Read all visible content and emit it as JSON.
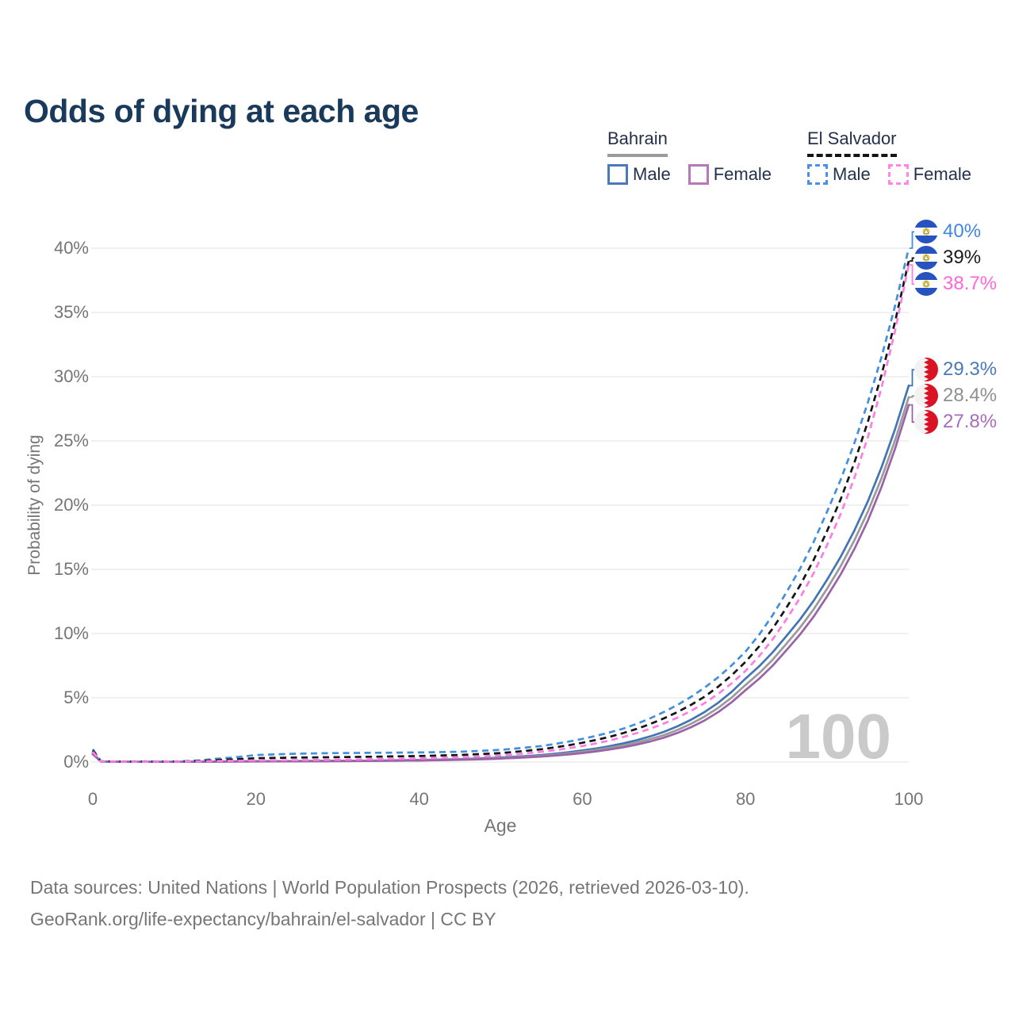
{
  "title": "Odds of dying at each age",
  "watermark": "100",
  "legend": {
    "groups": [
      {
        "name": "Bahrain",
        "line_style": "solid",
        "underline_color": "#9a9a9a",
        "items": [
          {
            "label": "Male",
            "color": "#4a7ab8"
          },
          {
            "label": "Female",
            "color": "#b878b8"
          }
        ]
      },
      {
        "name": "El Salvador",
        "line_style": "dashed",
        "underline_color": "#141414",
        "items": [
          {
            "label": "Male",
            "color": "#4a90e8"
          },
          {
            "label": "Female",
            "color": "#ff85e8"
          }
        ]
      }
    ]
  },
  "footer": {
    "line1": "Data sources: United Nations | World Population Prospects (2026, retrieved 2026-03-10).",
    "line2": "GeoRank.org/life-expectancy/bahrain/el-salvador | CC BY"
  },
  "chart_data": {
    "type": "line",
    "title": "Odds of dying at each age",
    "xlabel": "Age",
    "ylabel": "Probability of dying",
    "xlim": [
      0,
      100
    ],
    "ylim": [
      0,
      40
    ],
    "grid": true,
    "legend_position": "top-right",
    "x_ticks": [
      0,
      20,
      40,
      60,
      80,
      100
    ],
    "y_tick_values": [
      0,
      5,
      10,
      15,
      20,
      25,
      30,
      35,
      40
    ],
    "y_ticks": [
      "0%",
      "5%",
      "10%",
      "15%",
      "20%",
      "25%",
      "30%",
      "35%",
      "40%"
    ],
    "ages": [
      0,
      1,
      5,
      10,
      15,
      20,
      25,
      30,
      35,
      40,
      45,
      50,
      55,
      60,
      65,
      70,
      75,
      80,
      85,
      90,
      95,
      100
    ],
    "series": [
      {
        "name": "Bahrain Male",
        "country": "Bahrain",
        "sex": "Male",
        "color": "#4374b4",
        "dash": false,
        "flag": "bahrain",
        "end_label": "29.3%",
        "end_label_color": "#4a79b8",
        "values": [
          0.7,
          0.04,
          0.02,
          0.02,
          0.04,
          0.07,
          0.08,
          0.1,
          0.12,
          0.16,
          0.23,
          0.35,
          0.55,
          0.9,
          1.45,
          2.35,
          3.9,
          6.5,
          9.8,
          14.2,
          20.3,
          29.3
        ]
      },
      {
        "name": "Bahrain Both sexes",
        "country": "Bahrain",
        "sex": "Both",
        "color": "#9a9a9a",
        "dash": false,
        "flag": "bahrain",
        "end_label": "28.4%",
        "end_label_color": "#8f8f8f",
        "values": [
          0.65,
          0.038,
          0.018,
          0.018,
          0.035,
          0.06,
          0.07,
          0.09,
          0.11,
          0.14,
          0.2,
          0.31,
          0.49,
          0.8,
          1.3,
          2.1,
          3.55,
          6.0,
          9.2,
          13.5,
          19.5,
          28.4
        ]
      },
      {
        "name": "Bahrain Female",
        "country": "Bahrain",
        "sex": "Female",
        "color": "#9b62a8",
        "dash": false,
        "flag": "bahrain",
        "end_label": "27.8%",
        "end_label_color": "#a76cbe",
        "values": [
          0.6,
          0.035,
          0.016,
          0.016,
          0.03,
          0.045,
          0.055,
          0.07,
          0.09,
          0.12,
          0.17,
          0.27,
          0.43,
          0.7,
          1.15,
          1.9,
          3.25,
          5.6,
          8.7,
          12.9,
          18.8,
          27.8
        ]
      },
      {
        "name": "El Salvador Male",
        "country": "El Salvador",
        "sex": "Male",
        "color": "#418fde",
        "dash": true,
        "flag": "el-salvador",
        "end_label": "40%",
        "end_label_color": "#3f87e0",
        "values": [
          1.0,
          0.06,
          0.03,
          0.04,
          0.25,
          0.55,
          0.65,
          0.7,
          0.72,
          0.75,
          0.8,
          0.95,
          1.25,
          1.8,
          2.6,
          3.9,
          5.8,
          8.6,
          13.2,
          19.5,
          28.0,
          40.0
        ]
      },
      {
        "name": "El Salvador Both sexes",
        "country": "El Salvador",
        "sex": "Both",
        "color": "#141414",
        "dash": true,
        "flag": "el-salvador",
        "end_label": "39%",
        "end_label_color": "#1a1a1a",
        "values": [
          0.9,
          0.055,
          0.028,
          0.035,
          0.15,
          0.3,
          0.35,
          0.38,
          0.42,
          0.47,
          0.55,
          0.7,
          1.0,
          1.5,
          2.25,
          3.4,
          5.1,
          7.8,
          12.0,
          18.0,
          26.5,
          39.0
        ]
      },
      {
        "name": "El Salvador Female",
        "country": "El Salvador",
        "sex": "Female",
        "color": "#ff7ce2",
        "dash": true,
        "flag": "el-salvador",
        "end_label": "38.7%",
        "end_label_color": "#ff66d9",
        "values": [
          0.8,
          0.05,
          0.025,
          0.03,
          0.08,
          0.12,
          0.15,
          0.18,
          0.22,
          0.28,
          0.37,
          0.52,
          0.8,
          1.25,
          1.95,
          3.0,
          4.6,
          7.1,
          11.1,
          16.9,
          25.3,
          38.7
        ]
      }
    ]
  }
}
